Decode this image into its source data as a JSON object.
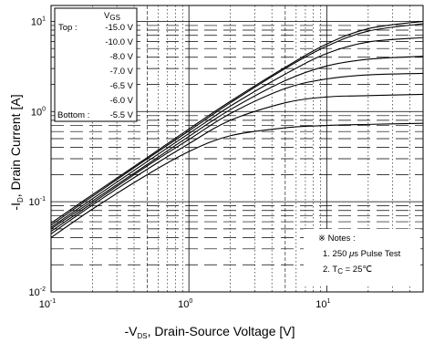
{
  "chart_data": {
    "type": "line",
    "xlabel": {
      "pre": "-V",
      "sub": "DS",
      "post": ", Drain-Source Voltage [V]"
    },
    "ylabel": {
      "pre": "-I",
      "sub": "D",
      "post": ", Drain Current [A]"
    },
    "x_scale": "log",
    "y_scale": "log",
    "xlim": [
      0.1,
      50
    ],
    "ylim": [
      0.01,
      15
    ],
    "x_ticks": [
      {
        "value": 0.1,
        "base": "10",
        "exp": "-1"
      },
      {
        "value": 1,
        "base": "10",
        "exp": "0"
      },
      {
        "value": 10,
        "base": "10",
        "exp": "1"
      }
    ],
    "y_ticks": [
      {
        "value": 0.01,
        "base": "10",
        "exp": "-2"
      },
      {
        "value": 0.1,
        "base": "10",
        "exp": "-1"
      },
      {
        "value": 1,
        "base": "10",
        "exp": "0"
      },
      {
        "value": 10,
        "base": "10",
        "exp": "1"
      }
    ],
    "grid": true,
    "legend": {
      "position": "top-left",
      "header": {
        "pre": "V",
        "sub": "GS"
      },
      "top_label": "Top :",
      "bottom_label": "Bottom :",
      "entries": [
        "-15.0 V",
        "-10.0 V",
        "-8.0 V",
        "-7.0 V",
        "-6.5 V",
        "-6.0 V",
        "-5.5 V"
      ]
    },
    "series": [
      {
        "label": "-15.0 V",
        "x": [
          0.1,
          0.2,
          0.5,
          1,
          2,
          5,
          10,
          20,
          50
        ],
        "y": [
          0.058,
          0.12,
          0.31,
          0.64,
          1.3,
          3.1,
          5.6,
          8.3,
          10.0
        ]
      },
      {
        "label": "-10.0 V",
        "x": [
          0.1,
          0.2,
          0.5,
          1,
          2,
          5,
          10,
          20,
          50
        ],
        "y": [
          0.055,
          0.115,
          0.3,
          0.61,
          1.25,
          3.0,
          5.3,
          7.8,
          9.4
        ]
      },
      {
        "label": "-8.0 V",
        "x": [
          0.1,
          0.2,
          0.5,
          1,
          2,
          5,
          10,
          20,
          50
        ],
        "y": [
          0.052,
          0.108,
          0.28,
          0.57,
          1.15,
          2.6,
          4.4,
          5.9,
          6.6
        ]
      },
      {
        "label": "-7.0 V",
        "x": [
          0.1,
          0.2,
          0.5,
          1,
          2,
          5,
          10,
          20,
          50
        ],
        "y": [
          0.05,
          0.102,
          0.26,
          0.53,
          1.05,
          2.2,
          3.2,
          3.8,
          4.1
        ]
      },
      {
        "label": "-6.5 V",
        "x": [
          0.1,
          0.2,
          0.5,
          1,
          2,
          5,
          10,
          20,
          50
        ],
        "y": [
          0.047,
          0.097,
          0.25,
          0.49,
          0.95,
          1.8,
          2.3,
          2.55,
          2.65
        ]
      },
      {
        "label": "-6.0 V",
        "x": [
          0.1,
          0.2,
          0.5,
          1,
          2,
          5,
          10,
          20,
          50
        ],
        "y": [
          0.044,
          0.092,
          0.23,
          0.44,
          0.8,
          1.25,
          1.45,
          1.5,
          1.55
        ]
      },
      {
        "label": "-5.5 V",
        "x": [
          0.1,
          0.2,
          0.5,
          1,
          2,
          5,
          10,
          20,
          50
        ],
        "y": [
          0.04,
          0.083,
          0.2,
          0.36,
          0.54,
          0.66,
          0.7,
          0.72,
          0.74
        ]
      }
    ],
    "notes": {
      "title": "※ Notes :",
      "line1": {
        "pre": "1. 250 ",
        "mu": "μ",
        "post": "s Pulse Test"
      },
      "line2": {
        "pre": "2. T",
        "sub": "C",
        "post": " = 25℃"
      }
    }
  }
}
